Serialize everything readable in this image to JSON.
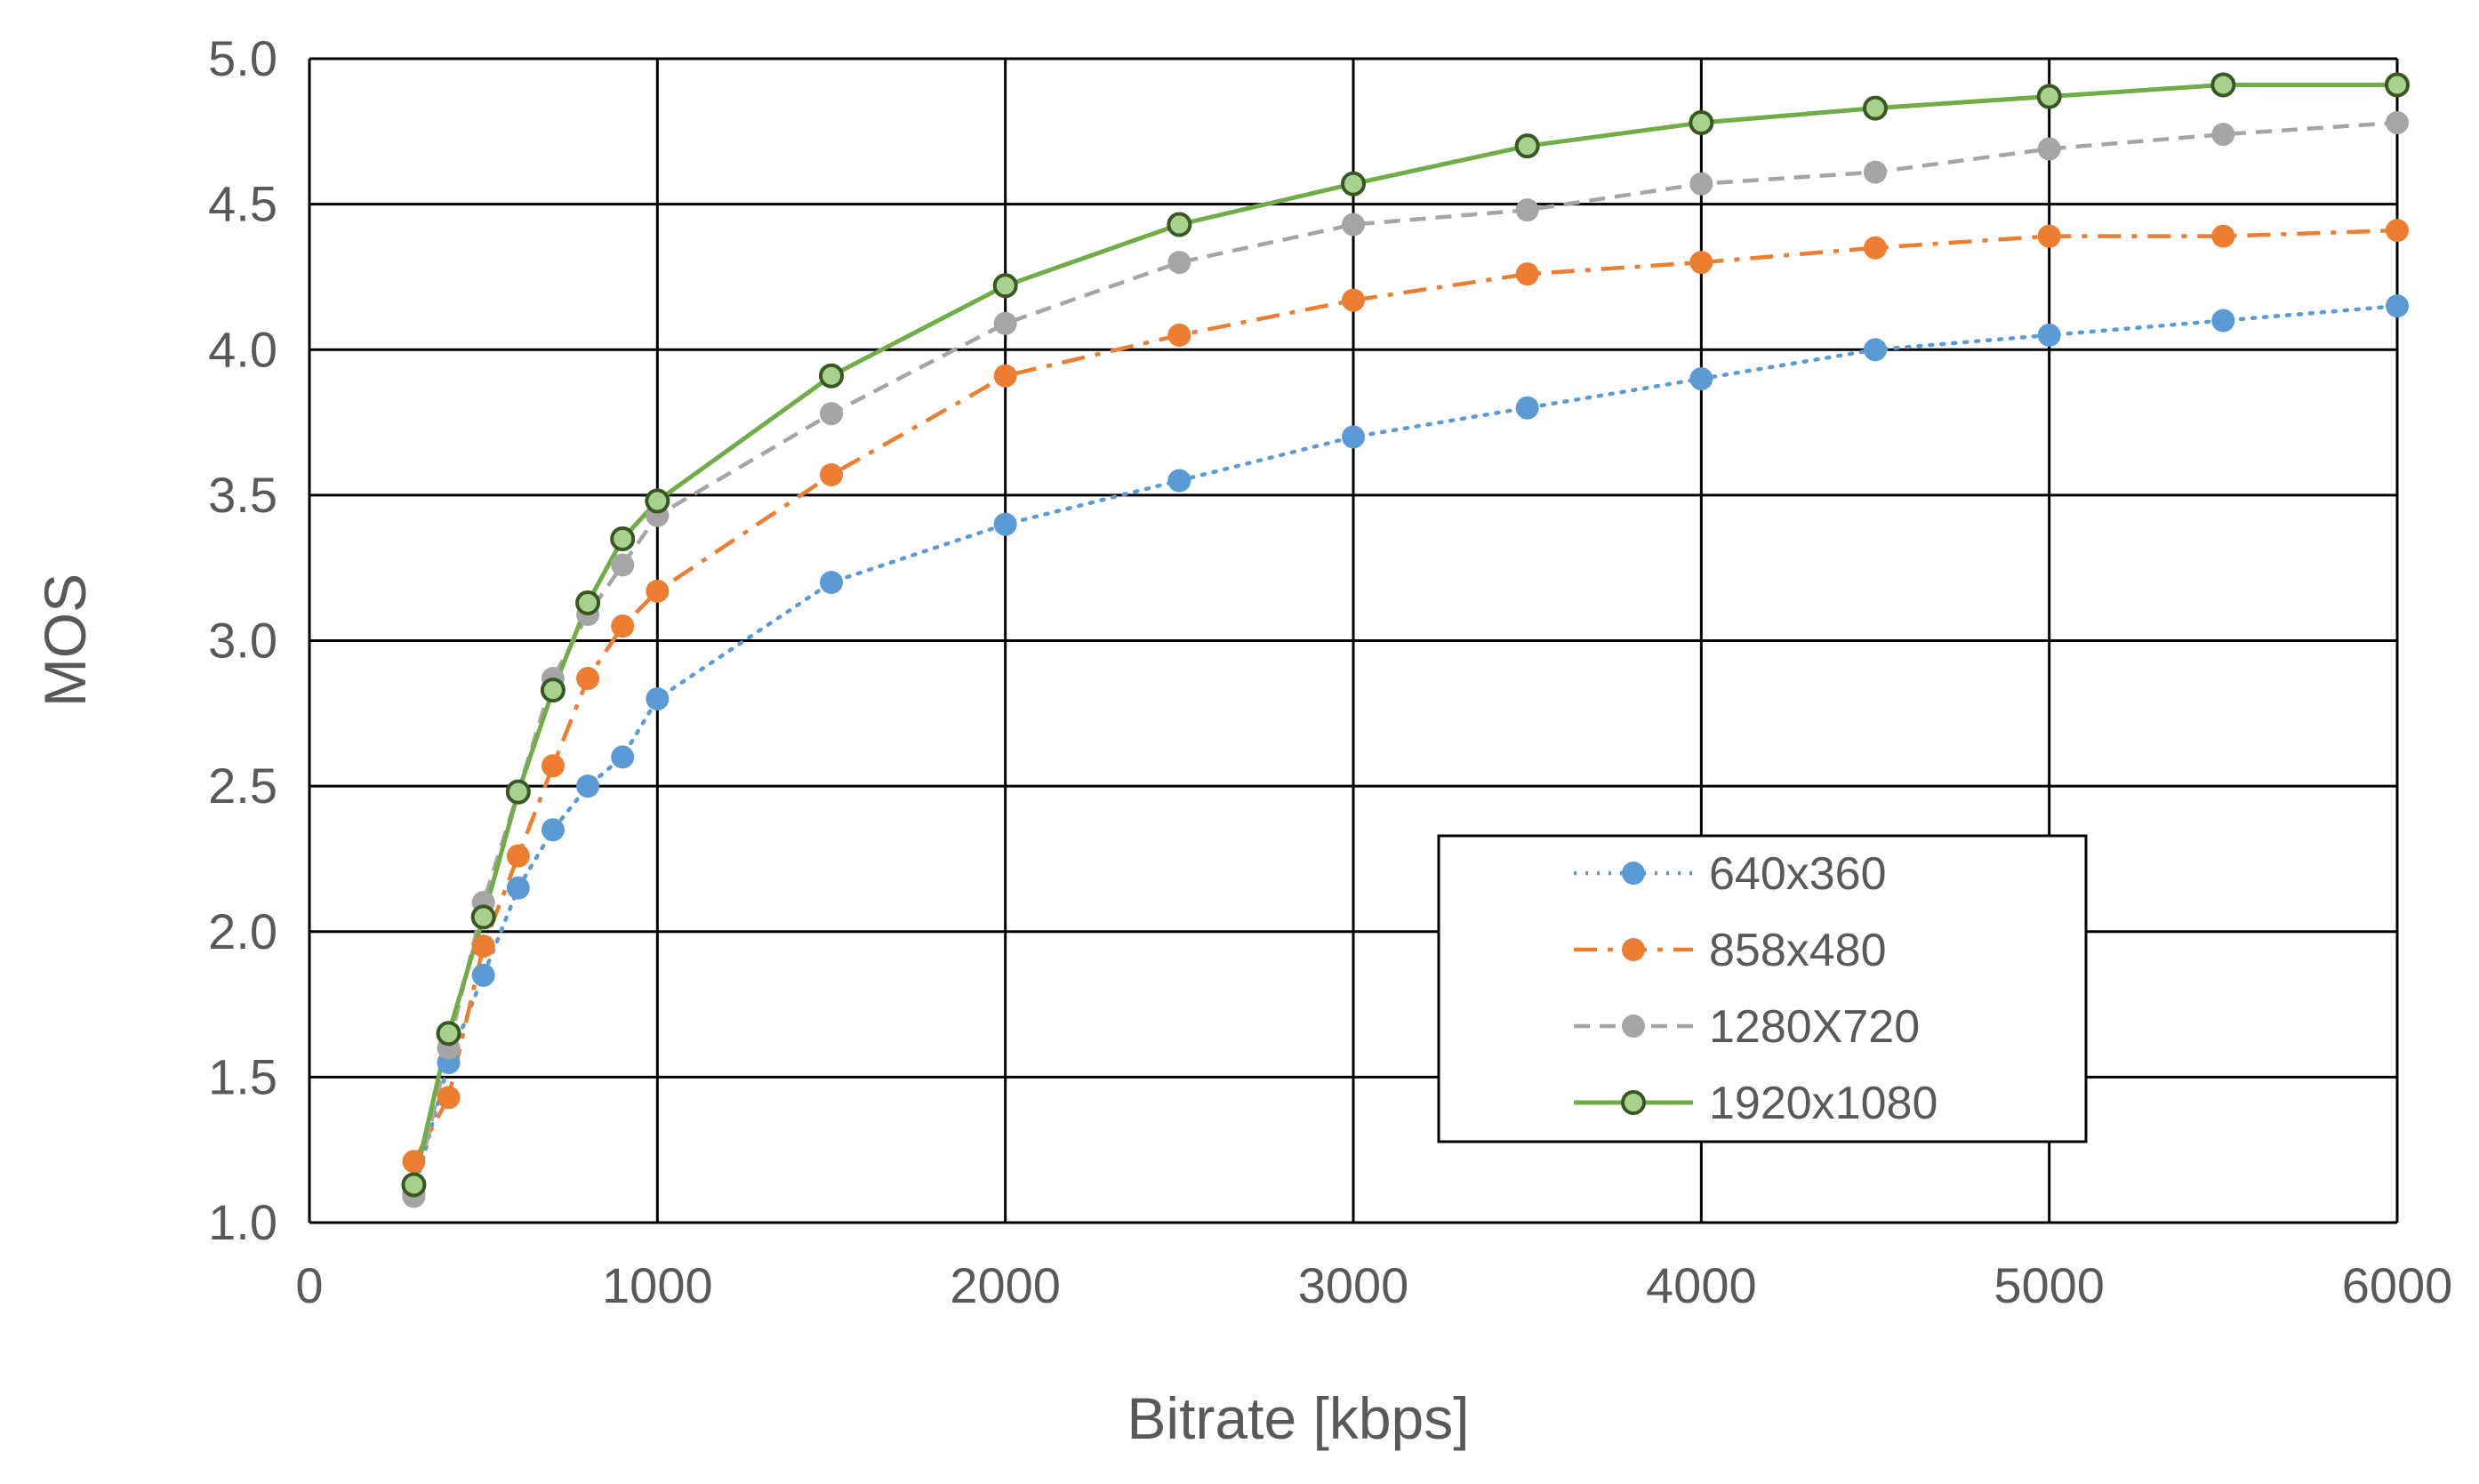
{
  "chart_data": {
    "type": "line",
    "title": "",
    "xlabel": "Bitrate [kbps]",
    "ylabel": "MOS",
    "xlim": [
      0,
      6000
    ],
    "ylim": [
      1.0,
      5.0
    ],
    "x_ticks": [
      "0",
      "1000",
      "2000",
      "3000",
      "4000",
      "5000",
      "6000"
    ],
    "y_ticks": [
      "1.0",
      "1.5",
      "2.0",
      "2.5",
      "3.0",
      "3.5",
      "4.0",
      "4.5",
      "5.0"
    ],
    "grid": true,
    "legend_position": "bottom-right",
    "x": [
      300,
      400,
      500,
      600,
      700,
      800,
      900,
      1000,
      1500,
      2000,
      2500,
      3000,
      3500,
      4000,
      4500,
      5000,
      5500,
      6000
    ],
    "series": [
      {
        "name": "640x360",
        "color": "#5B9BD5",
        "line_style": "dotted",
        "marker": "filled-circle",
        "values": [
          1.1,
          1.55,
          1.85,
          2.15,
          2.35,
          2.5,
          2.6,
          2.8,
          3.2,
          3.4,
          3.55,
          3.7,
          3.8,
          3.9,
          4.0,
          4.05,
          4.1,
          4.15
        ]
      },
      {
        "name": "858x480",
        "color": "#ED7D31",
        "line_style": "dash-dot",
        "marker": "filled-circle",
        "values": [
          1.21,
          1.43,
          1.95,
          2.26,
          2.57,
          2.87,
          3.05,
          3.17,
          3.57,
          3.91,
          4.05,
          4.17,
          4.26,
          4.3,
          4.35,
          4.39,
          4.39,
          4.41
        ]
      },
      {
        "name": "1280X720",
        "color": "#A5A5A5",
        "line_style": "dashed",
        "marker": "filled-circle",
        "values": [
          1.09,
          1.6,
          2.1,
          2.48,
          2.87,
          3.09,
          3.26,
          3.43,
          3.78,
          4.09,
          4.3,
          4.43,
          4.48,
          4.57,
          4.61,
          4.69,
          4.74,
          4.78
        ]
      },
      {
        "name": "1920x1080",
        "color": "#70AD47",
        "line_style": "solid",
        "marker": "hollow-circle",
        "values": [
          1.13,
          1.65,
          2.05,
          2.48,
          2.83,
          3.13,
          3.35,
          3.48,
          3.91,
          4.22,
          4.43,
          4.57,
          4.7,
          4.78,
          4.83,
          4.87,
          4.91,
          4.91
        ]
      }
    ]
  }
}
